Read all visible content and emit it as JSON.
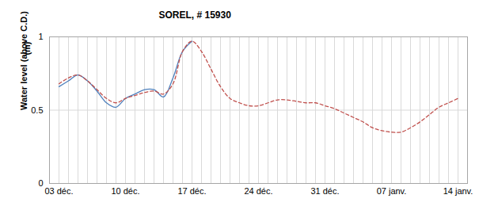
{
  "chart_data": {
    "type": "line",
    "title": "SOREL, # 15930",
    "y_label": "Water level (above C.D.)",
    "y_unit_label": "(m)",
    "categories": [
      "03 déc.",
      null,
      null,
      null,
      null,
      null,
      null,
      "10 déc.",
      null,
      null,
      null,
      null,
      null,
      null,
      "17 déc.",
      null,
      null,
      null,
      null,
      null,
      null,
      "24 déc.",
      null,
      null,
      null,
      null,
      null,
      null,
      "31 déc.",
      null,
      null,
      null,
      null,
      null,
      null,
      "07 janv.",
      null,
      null,
      null,
      null,
      null,
      null,
      "14 janv."
    ],
    "series": [
      {
        "color": "#4f81bd",
        "line_style": "solid",
        "values": [
          0.66,
          0.7,
          0.74,
          0.7,
          0.63,
          0.55,
          0.52,
          0.58,
          0.61,
          0.64,
          0.64,
          0.59,
          0.72,
          0.9,
          0.97,
          null,
          null,
          null,
          null,
          null,
          null,
          null,
          null,
          null,
          null,
          null,
          null,
          null,
          null,
          null,
          null,
          null,
          null,
          null,
          null,
          null,
          null,
          null,
          null,
          null,
          null,
          null,
          null
        ]
      },
      {
        "color": "#c0504d",
        "line_style": "dashed",
        "values": [
          0.68,
          0.72,
          0.74,
          0.7,
          0.64,
          0.58,
          0.55,
          0.58,
          0.6,
          0.62,
          0.63,
          0.61,
          0.68,
          0.9,
          0.97,
          0.9,
          0.78,
          0.66,
          0.58,
          0.55,
          0.53,
          0.53,
          0.55,
          0.57,
          0.57,
          0.56,
          0.55,
          0.55,
          0.53,
          0.51,
          0.48,
          0.45,
          0.42,
          0.38,
          0.36,
          0.35,
          0.35,
          0.38,
          0.42,
          0.47,
          0.52,
          0.55,
          0.58
        ]
      }
    ],
    "ylim": [
      0,
      1
    ],
    "yticks": [
      0,
      0.5,
      1
    ],
    "grid": true
  }
}
